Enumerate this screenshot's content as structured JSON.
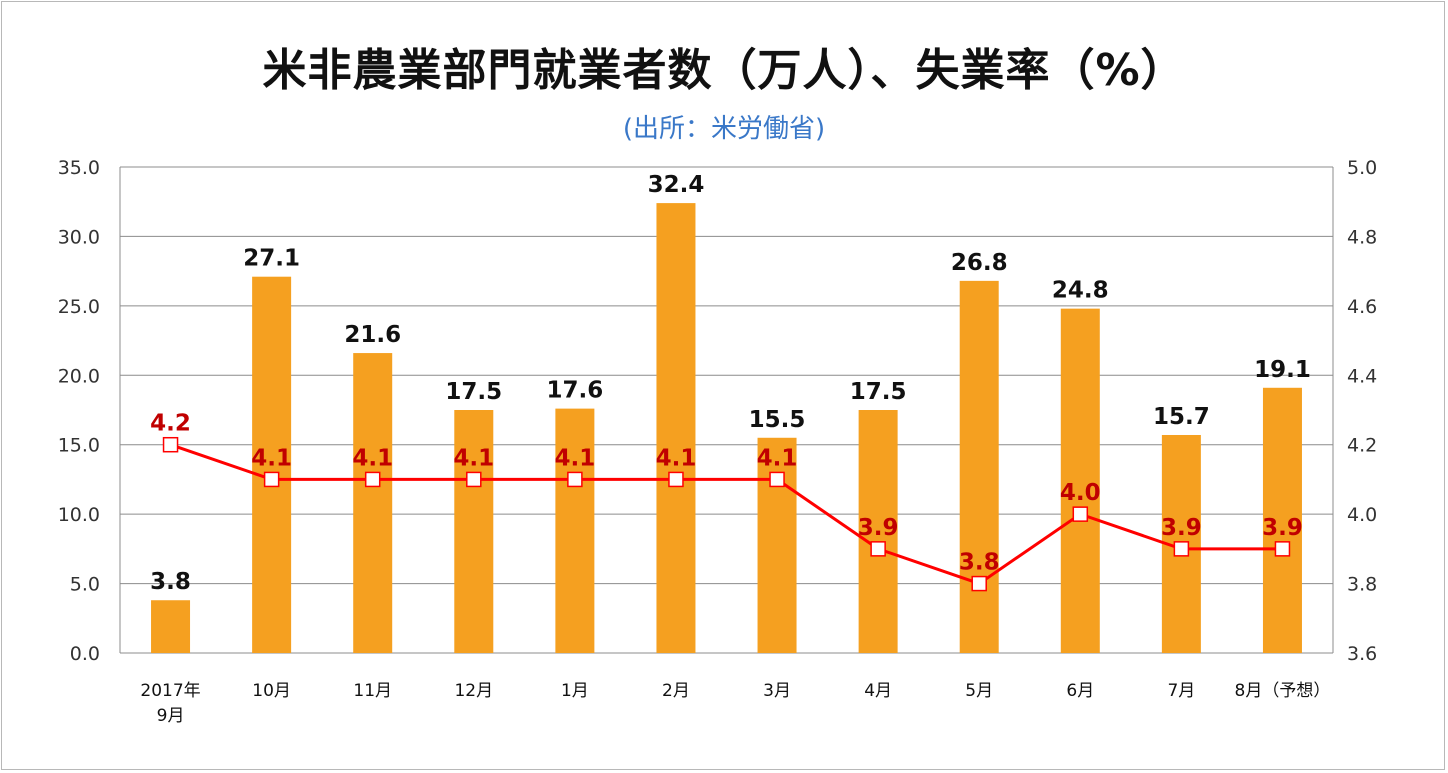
{
  "chart_data": {
    "type": "bar",
    "title": "米非農業部門就業者数（万人）、失業率（%）",
    "subtitle": "(出所：米労働省)",
    "categories": [
      [
        "2017年",
        "9月"
      ],
      [
        "10月"
      ],
      [
        "11月"
      ],
      [
        "12月"
      ],
      [
        "1月"
      ],
      [
        "2月"
      ],
      [
        "3月"
      ],
      [
        "4月"
      ],
      [
        "5月"
      ],
      [
        "6月"
      ],
      [
        "7月"
      ],
      [
        "8月（予想）"
      ]
    ],
    "series": [
      {
        "type": "bar",
        "axis": "left",
        "values": [
          3.8,
          27.1,
          21.6,
          17.5,
          17.6,
          32.4,
          15.5,
          17.5,
          26.8,
          24.8,
          15.7,
          19.1
        ],
        "labels": [
          "3.8",
          "27.1",
          "21.6",
          "17.5",
          "17.6",
          "32.4",
          "15.5",
          "17.5",
          "26.8",
          "24.8",
          "15.7",
          "19.1"
        ],
        "color": "#f5a020"
      },
      {
        "type": "line",
        "axis": "right",
        "values": [
          4.2,
          4.1,
          4.1,
          4.1,
          4.1,
          4.1,
          4.1,
          3.9,
          3.8,
          4.0,
          3.9,
          3.9
        ],
        "labels": [
          "4.2",
          "4.1",
          "4.1",
          "4.1",
          "4.1",
          "4.1",
          "4.1",
          "3.9",
          "3.8",
          "4.0",
          "3.9",
          "3.9"
        ],
        "color": "#ff0000"
      }
    ],
    "y_left": {
      "range": [
        0,
        35
      ],
      "ticks": [
        "0.0",
        "5.0",
        "10.0",
        "15.0",
        "20.0",
        "25.0",
        "30.0",
        "35.0"
      ]
    },
    "y_right": {
      "range": [
        3.6,
        5.0
      ],
      "ticks": [
        "3.6",
        "3.8",
        "4.0",
        "4.2",
        "4.4",
        "4.6",
        "4.8",
        "5.0"
      ]
    },
    "grid": true,
    "gridColor": "#8c8c8c",
    "textColor": "#111111",
    "lineLabelColor": "#c00000",
    "subtitleColor": "#3a78c8"
  }
}
